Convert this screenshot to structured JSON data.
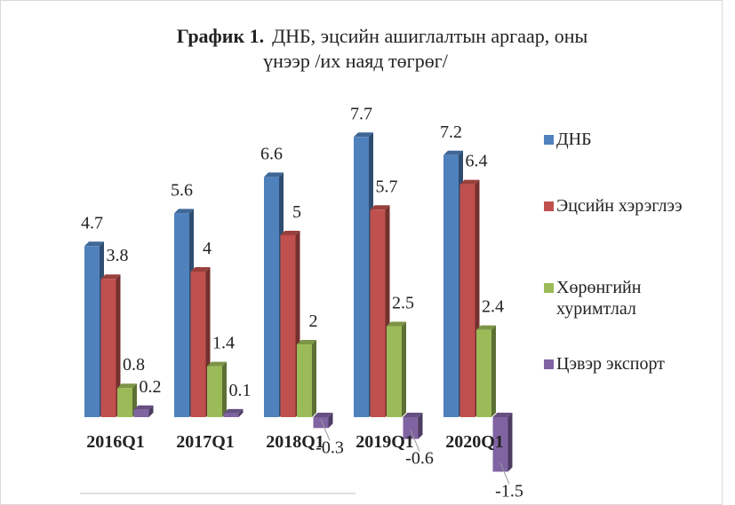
{
  "chart_data": {
    "type": "bar3d",
    "title": [
      "График 1.",
      "ДНБ, эцсийн ашиглалтын аргаар, оны",
      "үнээр /их наяд төгрөг/"
    ],
    "categories": [
      "2016Q1",
      "2017Q1",
      "2018Q1",
      "2019Q1",
      "2020Q1"
    ],
    "series": [
      {
        "name": "ДНБ",
        "color": "#4f81bd",
        "values": [
          4.7,
          5.6,
          6.6,
          7.7,
          7.2
        ]
      },
      {
        "name": "Эцсийн хэрэглээ",
        "color": "#c0504d",
        "values": [
          3.8,
          4.0,
          5.0,
          5.7,
          6.4
        ]
      },
      {
        "name": "Хөрөнгийн хуримтлал",
        "color": "#9bbb59",
        "values": [
          0.8,
          1.4,
          2.0,
          2.5,
          2.4
        ]
      },
      {
        "name": "Цэвэр экспорт",
        "color": "#8064a2",
        "values": [
          0.2,
          0.1,
          -0.3,
          -0.6,
          -1.5
        ]
      }
    ],
    "legend": "right"
  }
}
